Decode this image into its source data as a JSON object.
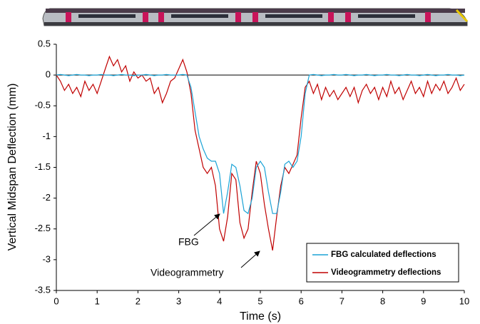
{
  "chart_data": {
    "type": "line",
    "xlabel": "Time (s)",
    "ylabel": "Vertical Midspan Deflection (mm)",
    "x": [
      0,
      0.1,
      0.2,
      0.3,
      0.4,
      0.5,
      0.6,
      0.7,
      0.8,
      0.9,
      1,
      1.1,
      1.2,
      1.3,
      1.4,
      1.5,
      1.6,
      1.7,
      1.8,
      1.9,
      2,
      2.1,
      2.2,
      2.3,
      2.4,
      2.5,
      2.6,
      2.7,
      2.8,
      2.9,
      3,
      3.1,
      3.2,
      3.3,
      3.4,
      3.5,
      3.6,
      3.7,
      3.8,
      3.9,
      4,
      4.1,
      4.2,
      4.3,
      4.4,
      4.5,
      4.6,
      4.7,
      4.8,
      4.9,
      5,
      5.1,
      5.2,
      5.3,
      5.4,
      5.5,
      5.6,
      5.7,
      5.8,
      5.9,
      6,
      6.1,
      6.2,
      6.3,
      6.4,
      6.5,
      6.6,
      6.7,
      6.8,
      6.9,
      7,
      7.1,
      7.2,
      7.3,
      7.4,
      7.5,
      7.6,
      7.7,
      7.8,
      7.9,
      8,
      8.1,
      8.2,
      8.3,
      8.4,
      8.5,
      8.6,
      8.7,
      8.8,
      8.9,
      9,
      9.1,
      9.2,
      9.3,
      9.4,
      9.5,
      9.6,
      9.7,
      9.8,
      9.9,
      10
    ],
    "series": [
      {
        "name": "FBG calculated deflections",
        "color": "#1ba3d6",
        "values": [
          0,
          0.01,
          0,
          -0.01,
          0,
          0.01,
          0,
          0,
          -0.01,
          0,
          0,
          0.01,
          0,
          0,
          -0.01,
          0,
          0.01,
          0,
          0,
          -0.01,
          0,
          0,
          0.01,
          0,
          -0.01,
          0,
          0,
          0.01,
          0,
          0,
          0,
          0.01,
          0,
          -0.2,
          -0.6,
          -1.0,
          -1.2,
          -1.35,
          -1.4,
          -1.4,
          -1.6,
          -2.25,
          -1.9,
          -1.45,
          -1.5,
          -1.8,
          -2.2,
          -2.25,
          -2.0,
          -1.5,
          -1.4,
          -1.5,
          -1.9,
          -2.25,
          -2.25,
          -1.9,
          -1.45,
          -1.4,
          -1.5,
          -1.4,
          -1.0,
          -0.3,
          0,
          0.01,
          0,
          -0.01,
          0,
          0,
          0.01,
          0,
          0,
          0.01,
          0,
          -0.01,
          0,
          0,
          0.01,
          0,
          -0.01,
          0,
          0,
          0.01,
          0,
          0,
          -0.01,
          0,
          0.01,
          0,
          0,
          -0.01,
          0,
          0.01,
          0,
          -0.01,
          0,
          0,
          0.01,
          0,
          0,
          -0.01,
          0
        ]
      },
      {
        "name": "Videogrammetry deflections",
        "color": "#c00000",
        "values": [
          0,
          -0.1,
          -0.25,
          -0.15,
          -0.3,
          -0.2,
          -0.35,
          -0.1,
          -0.25,
          -0.15,
          -0.3,
          -0.1,
          0.1,
          0.3,
          0.15,
          0.25,
          0.05,
          0.15,
          -0.1,
          0.05,
          -0.05,
          0,
          -0.1,
          -0.05,
          -0.3,
          -0.2,
          -0.45,
          -0.3,
          -0.1,
          -0.05,
          0.1,
          0.25,
          0.05,
          -0.3,
          -0.9,
          -1.2,
          -1.5,
          -1.6,
          -1.5,
          -1.8,
          -2.5,
          -2.7,
          -2.3,
          -1.6,
          -1.7,
          -2.4,
          -2.65,
          -2.5,
          -1.9,
          -1.4,
          -1.6,
          -2.1,
          -2.5,
          -2.85,
          -2.3,
          -1.8,
          -1.5,
          -1.6,
          -1.45,
          -1.3,
          -0.7,
          -0.2,
          -0.1,
          -0.3,
          -0.15,
          -0.4,
          -0.2,
          -0.35,
          -0.25,
          -0.4,
          -0.3,
          -0.2,
          -0.35,
          -0.2,
          -0.45,
          -0.25,
          -0.15,
          -0.3,
          -0.2,
          -0.4,
          -0.2,
          -0.35,
          -0.1,
          -0.3,
          -0.2,
          -0.4,
          -0.25,
          -0.1,
          -0.3,
          -0.2,
          -0.35,
          -0.1,
          -0.3,
          -0.15,
          -0.25,
          -0.1,
          -0.3,
          -0.2,
          -0.05,
          -0.25,
          -0.15
        ]
      }
    ],
    "xlim": [
      0,
      10
    ],
    "xticks": [
      0,
      1,
      2,
      3,
      4,
      5,
      6,
      7,
      8,
      9,
      10
    ],
    "ylim": [
      -3.5,
      0.5
    ],
    "yticks": [
      0.5,
      0,
      -0.5,
      -1,
      -1.5,
      -2,
      -2.5,
      -3,
      -3.5
    ],
    "grid": false,
    "legend": "lower right",
    "annotations": [
      {
        "text": "FBG"
      },
      {
        "text": "Videogrammetry"
      }
    ]
  }
}
